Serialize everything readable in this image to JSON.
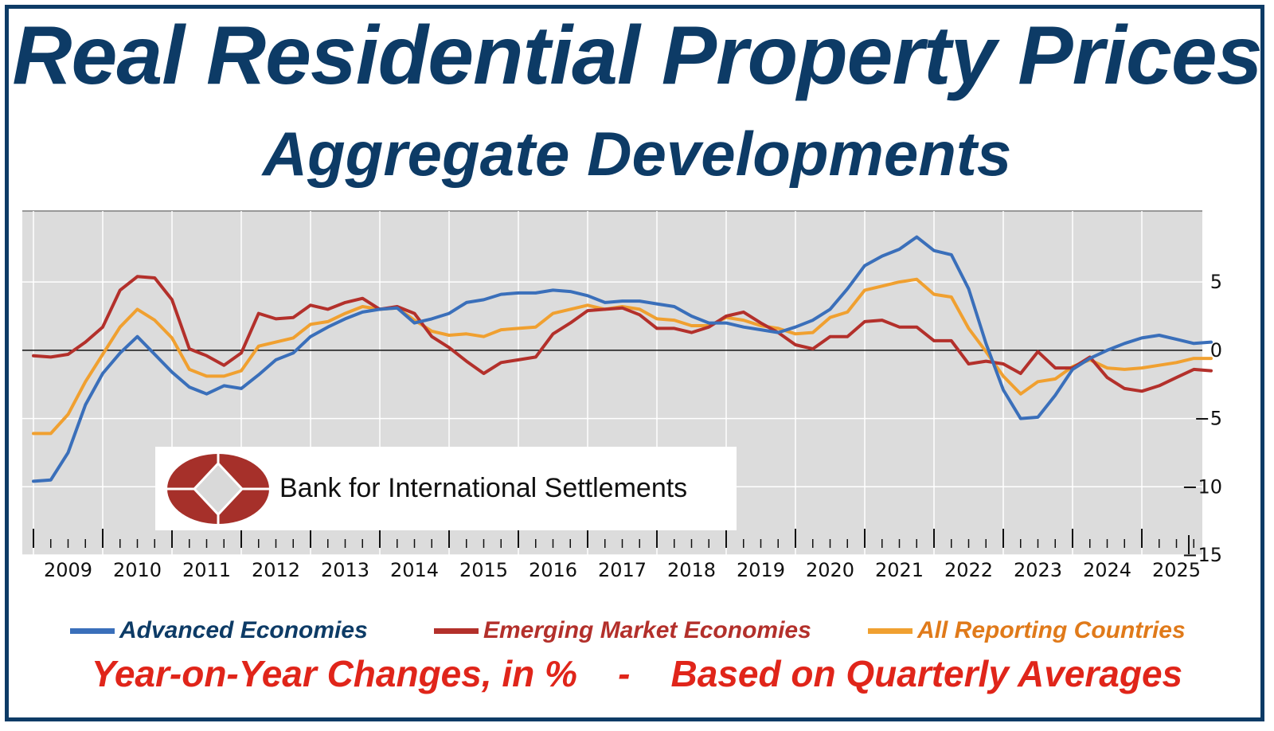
{
  "header": {
    "title": "Real Residential Property Prices",
    "subtitle": "Aggregate Developments"
  },
  "logo": {
    "text": "Bank for International Settlements",
    "colors": {
      "oval": "#a6302a",
      "diamond": "#d9d9d9"
    }
  },
  "legend": {
    "items": [
      {
        "label": "Advanced Economies",
        "color": "#3a6fba",
        "text_color": "#0d3b66"
      },
      {
        "label": "Emerging Market Economies",
        "color": "#b3302b",
        "text_color": "#b3302b"
      },
      {
        "label": "All Reporting Countries",
        "color": "#f0a030",
        "text_color": "#e07a1a"
      }
    ]
  },
  "footer": {
    "left": "Year-on-Year Changes, in %",
    "separator": "-",
    "right": "Based on Quarterly Averages"
  },
  "chart_data": {
    "type": "line",
    "x_start": 2009,
    "x_end": 2026,
    "x_step": 0.25,
    "x_tick_labels": [
      "2009",
      "2010",
      "2011",
      "2012",
      "2013",
      "2014",
      "2015",
      "2016",
      "2017",
      "2018",
      "2019",
      "2020",
      "2021",
      "2022",
      "2023",
      "2024",
      "2025"
    ],
    "y_ticks": [
      5,
      0,
      -5,
      -10,
      -15
    ],
    "y_tick_labels": [
      "5",
      "0",
      "−5",
      "−10",
      "−15"
    ],
    "ylim": [
      -15,
      10
    ],
    "y_axis_side": "right",
    "grid": true,
    "background": "#dcdcdc",
    "legend_position": "bottom",
    "series": [
      {
        "name": "Advanced Economies",
        "color": "#3a6fba",
        "values": [
          -9.6,
          -9.5,
          -7.5,
          -4.0,
          -1.7,
          -0.2,
          1.0,
          -0.3,
          -1.6,
          -2.7,
          -3.2,
          -2.6,
          -2.8,
          -1.8,
          -0.7,
          -0.2,
          1.0,
          1.7,
          2.3,
          2.8,
          3.0,
          3.1,
          2.0,
          2.3,
          2.7,
          3.5,
          3.7,
          4.1,
          4.2,
          4.2,
          4.4,
          4.3,
          4.0,
          3.5,
          3.6,
          3.6,
          3.4,
          3.2,
          2.5,
          2.0,
          2.0,
          1.7,
          1.5,
          1.3,
          1.7,
          2.2,
          3.0,
          4.5,
          6.2,
          6.9,
          7.4,
          8.3,
          7.3,
          7.0,
          4.5,
          0.5,
          -2.9,
          -5.0,
          -4.9,
          -3.3,
          -1.4,
          -0.6,
          0.0,
          0.5,
          0.9,
          1.1,
          0.8,
          0.5,
          0.6
        ]
      },
      {
        "name": "Emerging Market Economies",
        "color": "#b3302b",
        "values": [
          -0.4,
          -0.5,
          -0.3,
          0.6,
          1.7,
          4.4,
          5.4,
          5.3,
          3.7,
          0.1,
          -0.4,
          -1.1,
          -0.2,
          2.7,
          2.3,
          2.4,
          3.3,
          3.0,
          3.5,
          3.8,
          3.0,
          3.2,
          2.7,
          1.0,
          0.2,
          -0.8,
          -1.7,
          -0.9,
          -0.7,
          -0.5,
          1.2,
          2.0,
          2.9,
          3.0,
          3.1,
          2.6,
          1.6,
          1.6,
          1.3,
          1.7,
          2.5,
          2.8,
          2.0,
          1.3,
          0.4,
          0.1,
          1.0,
          1.0,
          2.1,
          2.2,
          1.7,
          1.7,
          0.7,
          0.7,
          -1.0,
          -0.8,
          -1.0,
          -1.7,
          -0.1,
          -1.3,
          -1.3,
          -0.5,
          -2.0,
          -2.8,
          -3.0,
          -2.6,
          -2.0,
          -1.4,
          -1.5
        ]
      },
      {
        "name": "All Reporting Countries",
        "color": "#f0a030",
        "values": [
          -6.1,
          -6.1,
          -4.7,
          -2.3,
          -0.3,
          1.7,
          3.0,
          2.2,
          0.9,
          -1.4,
          -1.9,
          -1.9,
          -1.5,
          0.3,
          0.6,
          0.9,
          1.9,
          2.1,
          2.7,
          3.2,
          3.0,
          3.1,
          2.2,
          1.4,
          1.1,
          1.2,
          1.0,
          1.5,
          1.6,
          1.7,
          2.7,
          3.0,
          3.3,
          3.0,
          3.2,
          3.0,
          2.3,
          2.2,
          1.8,
          1.8,
          2.4,
          2.2,
          1.8,
          1.6,
          1.2,
          1.3,
          2.4,
          2.8,
          4.4,
          4.7,
          5.0,
          5.2,
          4.1,
          3.9,
          1.6,
          -0.1,
          -1.9,
          -3.2,
          -2.3,
          -2.1,
          -1.2,
          -0.7,
          -1.3,
          -1.4,
          -1.3,
          -1.1,
          -0.9,
          -0.6,
          -0.6
        ]
      }
    ]
  }
}
